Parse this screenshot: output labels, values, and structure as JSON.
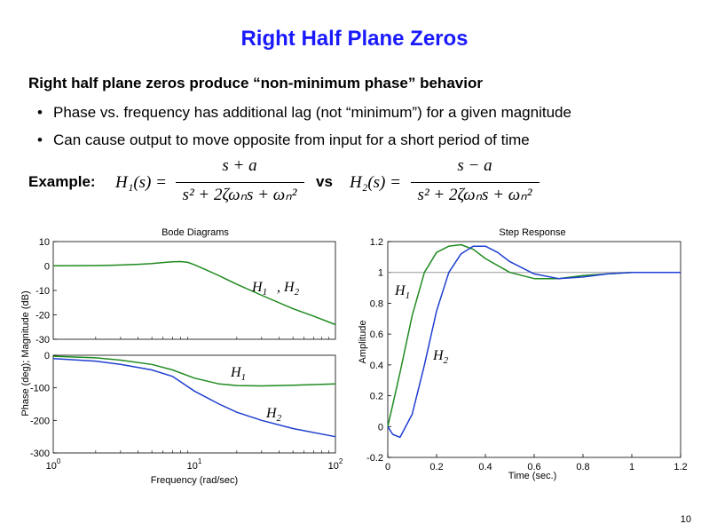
{
  "slide": {
    "title": "Right Half Plane Zeros",
    "subtitle": "Right half plane zeros produce “non-minimum phase” behavior",
    "bullets": [
      "Phase vs. frequency has additional lag (not “minimum”) for a given magnitude",
      "Can cause output to move opposite from input for a short period of time"
    ],
    "example_label": "Example:",
    "vs_label": "vs",
    "h1_lhs": "H₁(s) =",
    "h1_num": "s + a",
    "h2_lhs": "H₂(s) =",
    "h2_num": "s − a",
    "den": "s² + 2ζωₙs + ωₙ²",
    "page_number": "10"
  },
  "chart_data": [
    {
      "type": "line",
      "title": "Bode Diagrams",
      "panel": "magnitude",
      "ylabel": "Phase (deg); Magnitude (dB)",
      "x_scale": "log",
      "xlim": [
        1,
        100
      ],
      "ylim": [
        -30,
        10
      ],
      "yticks": [
        "10",
        "0",
        "-10",
        "-20",
        "-30"
      ],
      "series": [
        {
          "name": "H1 , H2",
          "color": "#1f8a1f",
          "x": [
            1,
            2,
            3,
            4,
            5,
            6,
            7,
            8,
            9,
            10,
            12,
            15,
            20,
            30,
            50,
            70,
            100
          ],
          "y": [
            0.1,
            0.2,
            0.4,
            0.7,
            1.0,
            1.4,
            1.7,
            1.8,
            1.5,
            0.5,
            -1.5,
            -4.0,
            -7.5,
            -12.0,
            -17.5,
            -20.5,
            -24.0
          ]
        }
      ],
      "annotations": [
        "H1",
        ", H2"
      ]
    },
    {
      "type": "line",
      "panel": "phase",
      "xlabel": "Frequency (rad/sec)",
      "x_scale": "log",
      "xlim": [
        1,
        100
      ],
      "ylim": [
        -300,
        0
      ],
      "yticks": [
        "0",
        "-100",
        "-200",
        "-300"
      ],
      "xticks": [
        "10^0",
        "10^1",
        "10^2"
      ],
      "series": [
        {
          "name": "H1",
          "color": "#1f8a1f",
          "x": [
            1,
            2,
            3,
            5,
            7,
            10,
            15,
            20,
            30,
            50,
            100
          ],
          "y": [
            -3,
            -8,
            -15,
            -28,
            -45,
            -70,
            -88,
            -93,
            -94,
            -92,
            -88
          ]
        },
        {
          "name": "H2",
          "color": "#1f3fd0",
          "x": [
            1,
            2,
            3,
            5,
            7,
            10,
            15,
            20,
            30,
            50,
            100
          ],
          "y": [
            -10,
            -18,
            -28,
            -45,
            -65,
            -110,
            -150,
            -175,
            -200,
            -225,
            -250
          ]
        }
      ],
      "annotations": [
        "H1",
        "H2"
      ]
    },
    {
      "type": "line",
      "title": "Step Response",
      "xlabel": "Time (sec.)",
      "ylabel": "Amplitude",
      "xlim": [
        0,
        1.2
      ],
      "ylim": [
        -0.2,
        1.2
      ],
      "xticks": [
        "0",
        "0.2",
        "0.4",
        "0.6",
        "0.8",
        "1",
        "1.2"
      ],
      "yticks": [
        "1.2",
        "1",
        "0.8",
        "0.6",
        "0.4",
        "0.2",
        "0",
        "-0.2"
      ],
      "series": [
        {
          "name": "H1",
          "color": "#1f8a1f",
          "x": [
            0,
            0.05,
            0.1,
            0.15,
            0.2,
            0.25,
            0.3,
            0.35,
            0.4,
            0.5,
            0.6,
            0.7,
            0.8,
            0.9,
            1.0,
            1.1,
            1.2
          ],
          "y": [
            0.0,
            0.35,
            0.72,
            1.0,
            1.13,
            1.17,
            1.18,
            1.15,
            1.09,
            1.0,
            0.96,
            0.96,
            0.98,
            0.99,
            1.0,
            1.0,
            1.0
          ]
        },
        {
          "name": "H2",
          "color": "#1f3fd0",
          "x": [
            0,
            0.02,
            0.05,
            0.1,
            0.15,
            0.2,
            0.25,
            0.3,
            0.35,
            0.4,
            0.45,
            0.5,
            0.6,
            0.7,
            0.8,
            0.9,
            1.0,
            1.1,
            1.2
          ],
          "y": [
            0.0,
            -0.05,
            -0.07,
            0.08,
            0.4,
            0.75,
            1.0,
            1.12,
            1.17,
            1.17,
            1.13,
            1.07,
            0.99,
            0.96,
            0.97,
            0.99,
            1.0,
            1.0,
            1.0
          ]
        }
      ],
      "reference_line": 1.0,
      "annotations": [
        "H1",
        "H2"
      ]
    }
  ]
}
